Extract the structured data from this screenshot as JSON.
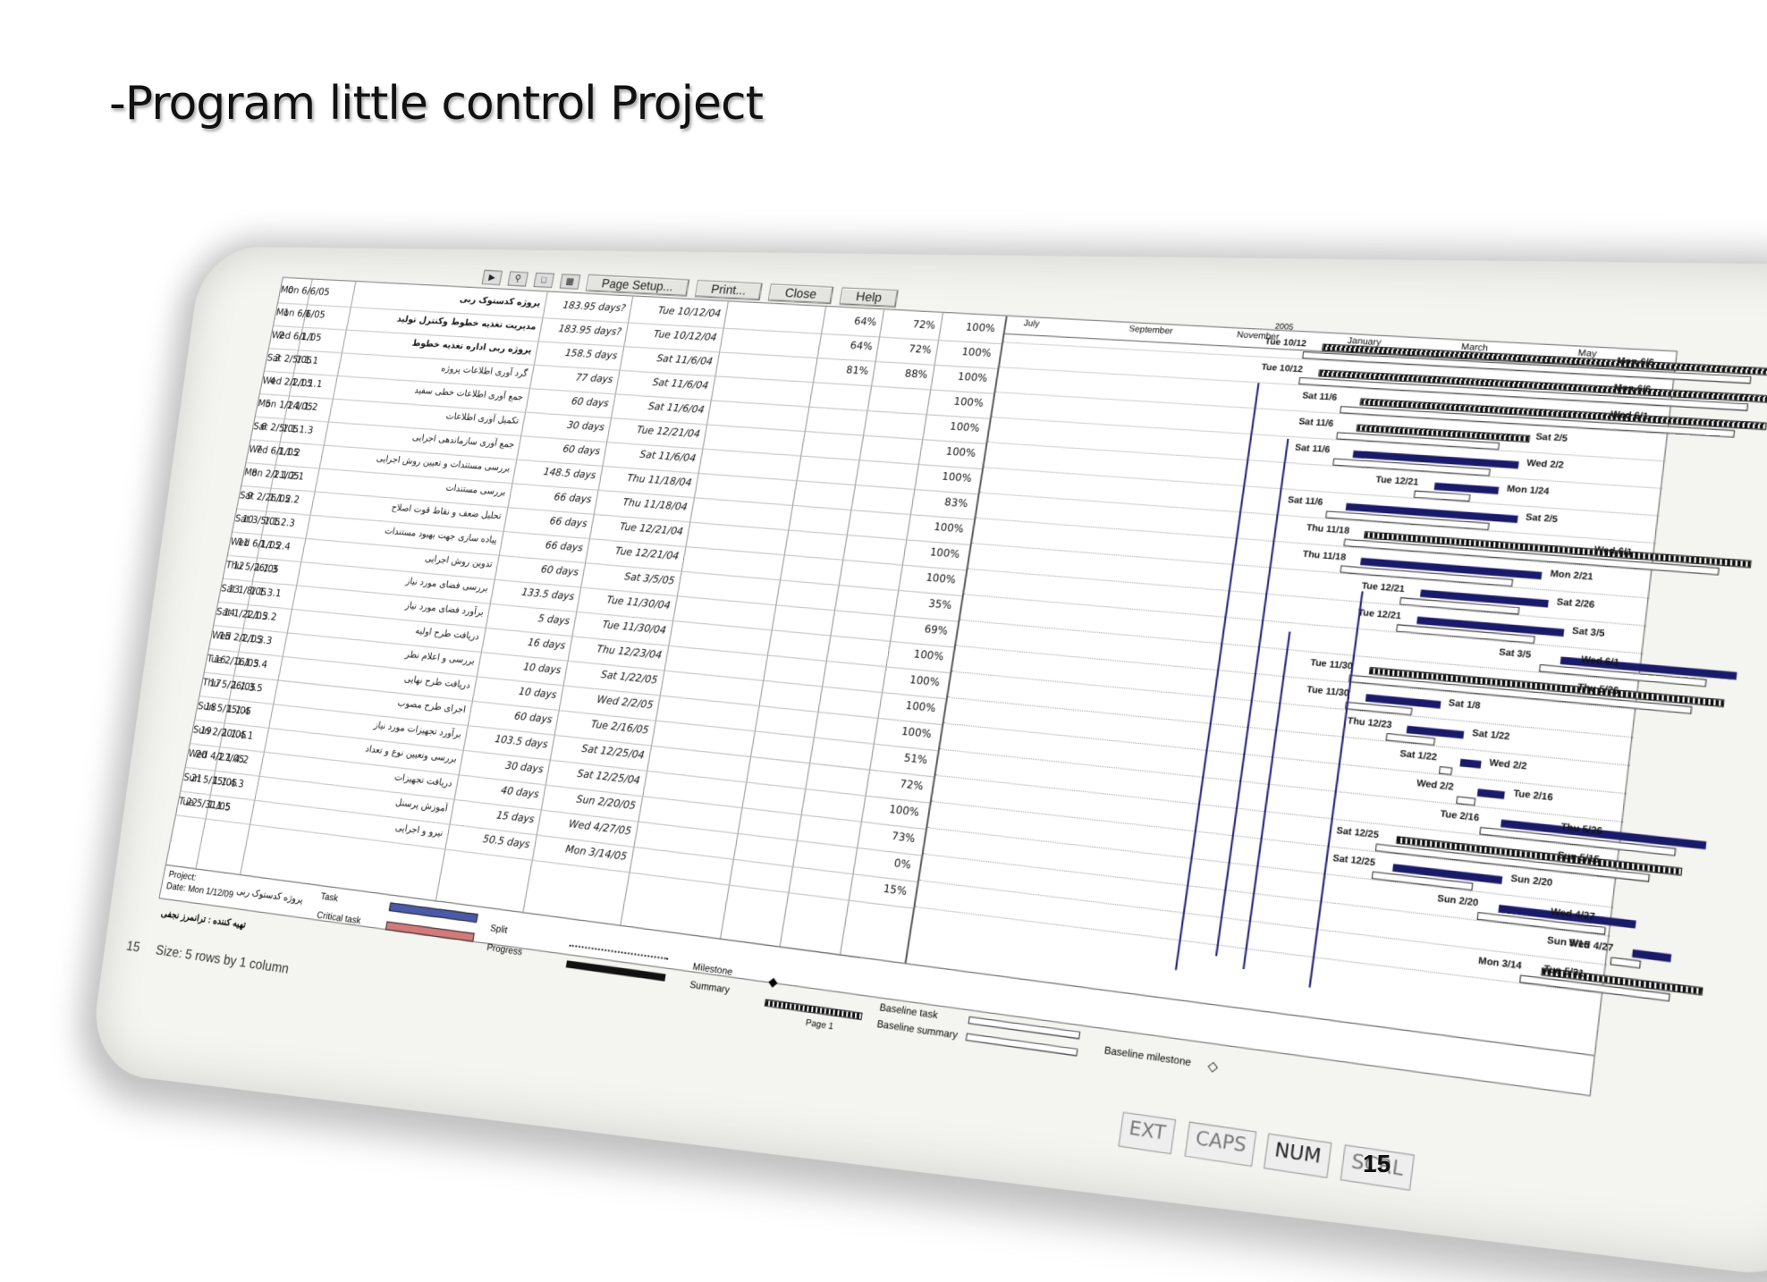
{
  "slide": {
    "title": "-Program little control Project",
    "page_number": "15"
  },
  "toolbar": {
    "page_setup": "Page Setup...",
    "print": "Print...",
    "close": "Close",
    "help": "Help"
  },
  "timescale": [
    "July",
    "September",
    "November",
    "January",
    "March",
    "May"
  ],
  "timescale_year": "2005",
  "rows": [
    {
      "id": "0",
      "wbs": "",
      "name": "پروژه کدستوک ربی",
      "dur": "183.95 days?",
      "start": "Tue 10/12/04",
      "finish": "Mon 6/6/05",
      "p1": "64%",
      "p2": "72%",
      "p3": "100%"
    },
    {
      "id": "1",
      "wbs": "1",
      "name": "مدیریت تغذیه خطوط وکنترل تولید",
      "dur": "183.95 days?",
      "start": "Tue 10/12/04",
      "finish": "Mon 6/6/05",
      "p1": "64%",
      "p2": "72%",
      "p3": "100%"
    },
    {
      "id": "2",
      "wbs": "1.1",
      "name": "پروژه ربی اداره تغذیه خطوط",
      "dur": "158.5 days",
      "start": "Sat 11/6/04",
      "finish": "Wed 6/1/05",
      "p1": "81%",
      "p2": "88%",
      "p3": "100%"
    },
    {
      "id": "3",
      "wbs": "1.1.1",
      "name": "گرد آوری اطلاعات پروژه",
      "dur": "77 days",
      "start": "Sat 11/6/04",
      "finish": "Sat 2/5/05",
      "p1": "",
      "p2": "",
      "p3": "100%"
    },
    {
      "id": "4",
      "wbs": "1.1.1.1",
      "name": "جمع آوری اطلاعات خطی سفید",
      "dur": "60 days",
      "start": "Sat 11/6/04",
      "finish": "Wed 2/2/05",
      "p1": "",
      "p2": "",
      "p3": "100%"
    },
    {
      "id": "5",
      "wbs": "1.1.1.2",
      "name": "تکمیل آوری اطلاعات",
      "dur": "30 days",
      "start": "Tue 12/21/04",
      "finish": "Mon 1/24/05",
      "p1": "",
      "p2": "",
      "p3": "100%"
    },
    {
      "id": "6",
      "wbs": "1.1.1.3",
      "name": "جمع آوری سازماندهی اجرایی",
      "dur": "60 days",
      "start": "Sat 11/6/04",
      "finish": "Sat 2/5/05",
      "p1": "",
      "p2": "",
      "p3": "100%"
    },
    {
      "id": "7",
      "wbs": "1.1.2",
      "name": "بررسی مستندات و تعیین روش اجرایی",
      "dur": "148.5 days",
      "start": "Thu 11/18/04",
      "finish": "Wed 6/1/05",
      "p1": "",
      "p2": "",
      "p3": "83%"
    },
    {
      "id": "8",
      "wbs": "1.1.2.1",
      "name": "بررسی مستندات",
      "dur": "66 days",
      "start": "Thu 11/18/04",
      "finish": "Mon 2/21/05",
      "p1": "",
      "p2": "",
      "p3": "100%"
    },
    {
      "id": "9",
      "wbs": "1.1.2.2",
      "name": "تحلیل ضعف و نقاط قوت اصلاح",
      "dur": "66 days",
      "start": "Tue 12/21/04",
      "finish": "Sat 2/26/05",
      "p1": "",
      "p2": "",
      "p3": "100%"
    },
    {
      "id": "10",
      "wbs": "1.1.2.3",
      "name": "پیاده سازی جهت بهبود مستندات",
      "dur": "66 days",
      "start": "Tue 12/21/04",
      "finish": "Sat 3/5/05",
      "p1": "",
      "p2": "",
      "p3": "100%"
    },
    {
      "id": "11",
      "wbs": "1.1.2.4",
      "name": "تدوین روش اجرایی",
      "dur": "60 days",
      "start": "Sat 3/5/05",
      "finish": "Wed 6/1/05",
      "p1": "",
      "p2": "",
      "p3": "35%"
    },
    {
      "id": "12",
      "wbs": "1.1.3",
      "name": "بررسی فضای مورد نیاز",
      "dur": "133.5 days",
      "start": "Tue 11/30/04",
      "finish": "Thu 5/26/05",
      "p1": "",
      "p2": "",
      "p3": "69%"
    },
    {
      "id": "13",
      "wbs": "1.1.3.1",
      "name": "برآورد فضای مورد نیاز",
      "dur": "5 days",
      "start": "Tue 11/30/04",
      "finish": "Sat 1/8/05",
      "p1": "",
      "p2": "",
      "p3": "100%"
    },
    {
      "id": "14",
      "wbs": "1.1.3.2",
      "name": "دریافت طرح اولیه",
      "dur": "16 days",
      "start": "Thu 12/23/04",
      "finish": "Sat 1/22/05",
      "p1": "",
      "p2": "",
      "p3": "100%"
    },
    {
      "id": "15",
      "wbs": "1.1.3.3",
      "name": "بررسی و اعلام نظر",
      "dur": "10 days",
      "start": "Sat 1/22/05",
      "finish": "Wed 2/2/05",
      "p1": "",
      "p2": "",
      "p3": "100%"
    },
    {
      "id": "16",
      "wbs": "1.1.3.4",
      "name": "دریافت طرح نهایی",
      "dur": "10 days",
      "start": "Wed 2/2/05",
      "finish": "Tue 2/16/05",
      "p1": "",
      "p2": "",
      "p3": "100%"
    },
    {
      "id": "17",
      "wbs": "1.1.3.5",
      "name": "اجرای طرح مصوب",
      "dur": "60 days",
      "start": "Tue 2/16/05",
      "finish": "Thu 5/26/05",
      "p1": "",
      "p2": "",
      "p3": "51%"
    },
    {
      "id": "18",
      "wbs": "1.1.4",
      "name": "برآورد تجهیزات مورد نیاز",
      "dur": "103.5 days",
      "start": "Sat 12/25/04",
      "finish": "Sun 5/15/05",
      "p1": "",
      "p2": "",
      "p3": "72%"
    },
    {
      "id": "19",
      "wbs": "1.1.4.1",
      "name": "بررسی وتعیین نوع و تعداد",
      "dur": "30 days",
      "start": "Sat 12/25/04",
      "finish": "Sun 2/20/05",
      "p1": "",
      "p2": "",
      "p3": "100%"
    },
    {
      "id": "20",
      "wbs": "1.1.4.2",
      "name": "دریافت تجهیزات",
      "dur": "40 days",
      "start": "Sun 2/20/05",
      "finish": "Wed 4/27/05",
      "p1": "",
      "p2": "",
      "p3": "73%"
    },
    {
      "id": "21",
      "wbs": "1.1.4.3",
      "name": "آموزش پرسنل",
      "dur": "15 days",
      "start": "Wed 4/27/05",
      "finish": "Sun 5/15/05",
      "p1": "",
      "p2": "",
      "p3": "0%"
    },
    {
      "id": "22",
      "wbs": "1.1.5",
      "name": "نیرو و اجرایی",
      "dur": "50.5 days",
      "start": "Mon 3/14/05",
      "finish": "Tue 5/31/05",
      "p1": "",
      "p2": "",
      "p3": "15%"
    }
  ],
  "gantt_labels": [
    {
      "row": 0,
      "left": "Tue 10/12",
      "right": "Mon 6/6"
    },
    {
      "row": 1,
      "left": "Tue 10/12",
      "right": "Mon 6/6"
    },
    {
      "row": 2,
      "left": "Sat 11/6",
      "right": "Wed 6/1"
    },
    {
      "row": 3,
      "left": "Sat 11/6",
      "right": "Sat 2/5"
    },
    {
      "row": 4,
      "left": "Sat 11/6",
      "right": "Wed 2/2"
    },
    {
      "row": 5,
      "left": "Tue 12/21",
      "right": "Mon 1/24"
    },
    {
      "row": 6,
      "left": "Sat 11/6",
      "right": "Sat 2/5"
    },
    {
      "row": 7,
      "left": "Thu 11/18",
      "right": "Wed 6/1"
    },
    {
      "row": 8,
      "left": "Thu 11/18",
      "right": "Mon 2/21"
    },
    {
      "row": 9,
      "left": "Tue 12/21",
      "right": "Sat 2/26"
    },
    {
      "row": 10,
      "left": "Tue 12/21",
      "right": "Sat 3/5"
    },
    {
      "row": 11,
      "left": "Sat 3/5",
      "right": "Wed 6/1"
    },
    {
      "row": 12,
      "left": "Tue 11/30",
      "right": "Thu 5/26"
    },
    {
      "row": 13,
      "left": "Tue 11/30",
      "right": "Sat 1/8"
    },
    {
      "row": 14,
      "left": "Thu 12/23",
      "right": "Sat 1/22"
    },
    {
      "row": 15,
      "left": "Sat 1/22",
      "right": "Wed 2/2"
    },
    {
      "row": 16,
      "left": "Wed 2/2",
      "right": "Tue 2/16"
    },
    {
      "row": 17,
      "left": "Tue 2/16",
      "right": "Thu 5/26"
    },
    {
      "row": 18,
      "left": "Sat 12/25",
      "right": "Sun 5/15"
    },
    {
      "row": 19,
      "left": "Sat 12/25",
      "right": "Sun 2/20"
    },
    {
      "row": 20,
      "left": "Sun 2/20",
      "right": "Wed 4/27"
    },
    {
      "row": 21,
      "left": "Wed 4/27",
      "right": "Sun 5/15"
    },
    {
      "row": 22,
      "left": "Mon 3/14",
      "right": "Tue 5/31"
    }
  ],
  "footer": {
    "project_label": "Project:",
    "project_name": "پروژه کدستوک ربی",
    "date_label": "Date: Mon 1/12/09",
    "prepared_by": "تهیه کننده : ترانمرز نجفی",
    "legend": {
      "task": "Task",
      "critical_task": "Critical task",
      "split": "Split",
      "progress": "Progress",
      "milestone": "Milestone",
      "summary": "Summary",
      "baseline_task": "Baseline task",
      "baseline_summary": "Baseline summary",
      "baseline_milestone": "Baseline milestone"
    },
    "page": "Page 1"
  },
  "status": {
    "size_text": "Size: 5 rows by 1 column",
    "prefix": "15",
    "ext": "EXT",
    "caps": "CAPS",
    "num": "NUM",
    "scrl": "SCRL"
  }
}
